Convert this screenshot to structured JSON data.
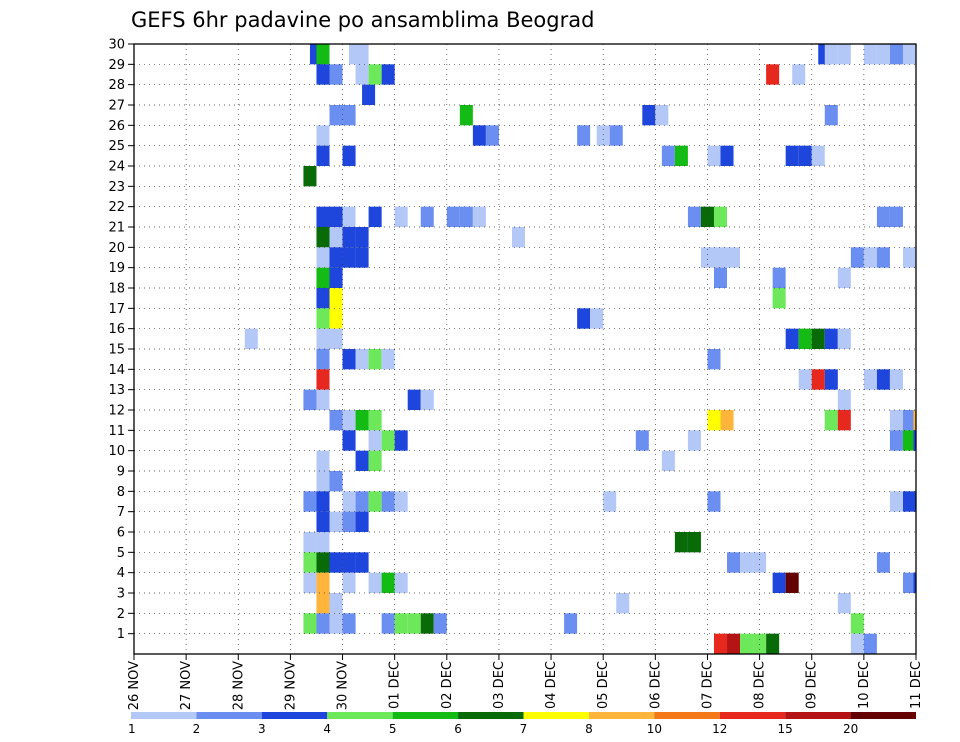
{
  "chart_data": {
    "type": "heatmap",
    "title": "GEFS 6hr padavine po ansamblima Beograd",
    "x_tick_labels": [
      "26 NOV",
      "27 NOV",
      "28 NOV",
      "29 NOV",
      "30 NOV",
      "01 DEC",
      "02 DEC",
      "03 DEC",
      "04 DEC",
      "05 DEC",
      "06 DEC",
      "07 DEC",
      "08 DEC",
      "09 DEC",
      "10 DEC",
      "11 DEC"
    ],
    "x_range": [
      0,
      60
    ],
    "x_step_hours": 6,
    "y_tick_labels": [
      "1",
      "2",
      "3",
      "4",
      "5",
      "6",
      "7",
      "8",
      "9",
      "10",
      "11",
      "12",
      "13",
      "14",
      "15",
      "16",
      "17",
      "18",
      "19",
      "20",
      "21",
      "22",
      "23",
      "24",
      "25",
      "26",
      "27",
      "28",
      "29",
      "30"
    ],
    "y_range": [
      0,
      30
    ],
    "grid": true,
    "colorbar": {
      "position": "bottom",
      "labels": [
        "1",
        "2",
        "3",
        "4",
        "5",
        "6",
        "7",
        "8",
        "10",
        "12",
        "15",
        "20"
      ],
      "colors": [
        "#b4c8f8",
        "#6b8ff0",
        "#1e46dc",
        "#6de85a",
        "#14bb14",
        "#086b08",
        "#ffff00",
        "#ffb43c",
        "#f57818",
        "#e6281e",
        "#b41414",
        "#640000"
      ]
    },
    "cells": [
      {
        "x": 13.5,
        "y": 30,
        "c": 3
      },
      {
        "x": 14,
        "y": 30,
        "c": 5
      },
      {
        "x": 16.5,
        "y": 30,
        "c": 1
      },
      {
        "x": 17,
        "y": 30,
        "c": 1
      },
      {
        "x": 52.5,
        "y": 30,
        "c": 3
      },
      {
        "x": 53,
        "y": 30,
        "c": 1
      },
      {
        "x": 54,
        "y": 30,
        "c": 1
      },
      {
        "x": 56,
        "y": 30,
        "c": 1
      },
      {
        "x": 57,
        "y": 30,
        "c": 1
      },
      {
        "x": 58,
        "y": 30,
        "c": 2
      },
      {
        "x": 59,
        "y": 30,
        "c": 1
      },
      {
        "x": 14,
        "y": 29,
        "c": 3
      },
      {
        "x": 15,
        "y": 29,
        "c": 2
      },
      {
        "x": 17,
        "y": 29,
        "c": 1
      },
      {
        "x": 18,
        "y": 29,
        "c": 4
      },
      {
        "x": 19,
        "y": 29,
        "c": 3
      },
      {
        "x": 48.5,
        "y": 29,
        "c": 10
      },
      {
        "x": 50.5,
        "y": 29,
        "c": 1
      },
      {
        "x": 17.5,
        "y": 28,
        "c": 3
      },
      {
        "x": 15,
        "y": 27,
        "c": 2
      },
      {
        "x": 16,
        "y": 27,
        "c": 2
      },
      {
        "x": 25,
        "y": 27,
        "c": 5
      },
      {
        "x": 39,
        "y": 27,
        "c": 3
      },
      {
        "x": 40,
        "y": 27,
        "c": 1
      },
      {
        "x": 53,
        "y": 27,
        "c": 2
      },
      {
        "x": 14,
        "y": 26,
        "c": 1
      },
      {
        "x": 26,
        "y": 26,
        "c": 3
      },
      {
        "x": 27,
        "y": 26,
        "c": 2
      },
      {
        "x": 34,
        "y": 26,
        "c": 2
      },
      {
        "x": 35.5,
        "y": 26,
        "c": 1
      },
      {
        "x": 36.5,
        "y": 26,
        "c": 2
      },
      {
        "x": 14,
        "y": 25,
        "c": 3
      },
      {
        "x": 16,
        "y": 25,
        "c": 3
      },
      {
        "x": 40.5,
        "y": 25,
        "c": 2
      },
      {
        "x": 41.5,
        "y": 25,
        "c": 5
      },
      {
        "x": 44,
        "y": 25,
        "c": 1
      },
      {
        "x": 45,
        "y": 25,
        "c": 3
      },
      {
        "x": 50,
        "y": 25,
        "c": 3
      },
      {
        "x": 51,
        "y": 25,
        "c": 3
      },
      {
        "x": 52,
        "y": 25,
        "c": 1
      },
      {
        "x": 13,
        "y": 24,
        "c": 6
      },
      {
        "x": 14,
        "y": 22,
        "c": 3
      },
      {
        "x": 15,
        "y": 22,
        "c": 3
      },
      {
        "x": 16,
        "y": 22,
        "c": 1
      },
      {
        "x": 18,
        "y": 22,
        "c": 3
      },
      {
        "x": 20,
        "y": 22,
        "c": 1
      },
      {
        "x": 22,
        "y": 22,
        "c": 2
      },
      {
        "x": 24,
        "y": 22,
        "c": 2
      },
      {
        "x": 25,
        "y": 22,
        "c": 2
      },
      {
        "x": 26,
        "y": 22,
        "c": 1
      },
      {
        "x": 42.5,
        "y": 22,
        "c": 2
      },
      {
        "x": 43.5,
        "y": 22,
        "c": 6
      },
      {
        "x": 44.5,
        "y": 22,
        "c": 4
      },
      {
        "x": 57,
        "y": 22,
        "c": 2
      },
      {
        "x": 58,
        "y": 22,
        "c": 2
      },
      {
        "x": 14,
        "y": 21,
        "c": 6
      },
      {
        "x": 15,
        "y": 21,
        "c": 1
      },
      {
        "x": 16,
        "y": 21,
        "c": 3
      },
      {
        "x": 17,
        "y": 21,
        "c": 3
      },
      {
        "x": 29,
        "y": 21,
        "c": 1
      },
      {
        "x": 14,
        "y": 20,
        "c": 1
      },
      {
        "x": 15,
        "y": 20,
        "c": 3
      },
      {
        "x": 16,
        "y": 20,
        "c": 3
      },
      {
        "x": 17,
        "y": 20,
        "c": 3
      },
      {
        "x": 43.5,
        "y": 20,
        "c": 1
      },
      {
        "x": 44.5,
        "y": 20,
        "c": 1
      },
      {
        "x": 45.5,
        "y": 20,
        "c": 1
      },
      {
        "x": 55,
        "y": 20,
        "c": 2
      },
      {
        "x": 56,
        "y": 20,
        "c": 1
      },
      {
        "x": 57,
        "y": 20,
        "c": 2
      },
      {
        "x": 59,
        "y": 20,
        "c": 1
      },
      {
        "x": 14,
        "y": 19,
        "c": 5
      },
      {
        "x": 15,
        "y": 19,
        "c": 3
      },
      {
        "x": 44.5,
        "y": 19,
        "c": 2
      },
      {
        "x": 49,
        "y": 19,
        "c": 2
      },
      {
        "x": 54,
        "y": 19,
        "c": 1
      },
      {
        "x": 14,
        "y": 18,
        "c": 3
      },
      {
        "x": 15,
        "y": 18,
        "c": 7
      },
      {
        "x": 49,
        "y": 18,
        "c": 4
      },
      {
        "x": 14,
        "y": 17,
        "c": 4
      },
      {
        "x": 15,
        "y": 17,
        "c": 7
      },
      {
        "x": 34,
        "y": 17,
        "c": 3
      },
      {
        "x": 35,
        "y": 17,
        "c": 1
      },
      {
        "x": 8.5,
        "y": 16,
        "c": 1
      },
      {
        "x": 14,
        "y": 16,
        "c": 1
      },
      {
        "x": 15,
        "y": 16,
        "c": 1
      },
      {
        "x": 50,
        "y": 16,
        "c": 3
      },
      {
        "x": 51,
        "y": 16,
        "c": 5
      },
      {
        "x": 52,
        "y": 16,
        "c": 6
      },
      {
        "x": 53,
        "y": 16,
        "c": 3
      },
      {
        "x": 54,
        "y": 16,
        "c": 1
      },
      {
        "x": 14,
        "y": 15,
        "c": 2
      },
      {
        "x": 16,
        "y": 15,
        "c": 3
      },
      {
        "x": 17,
        "y": 15,
        "c": 1
      },
      {
        "x": 18,
        "y": 15,
        "c": 4
      },
      {
        "x": 19,
        "y": 15,
        "c": 1
      },
      {
        "x": 44,
        "y": 15,
        "c": 2
      },
      {
        "x": 14,
        "y": 14,
        "c": 10
      },
      {
        "x": 51,
        "y": 14,
        "c": 1
      },
      {
        "x": 52,
        "y": 14,
        "c": 10
      },
      {
        "x": 53,
        "y": 14,
        "c": 3
      },
      {
        "x": 56,
        "y": 14,
        "c": 1
      },
      {
        "x": 57,
        "y": 14,
        "c": 3
      },
      {
        "x": 58,
        "y": 14,
        "c": 1
      },
      {
        "x": 13,
        "y": 13,
        "c": 2
      },
      {
        "x": 14,
        "y": 13,
        "c": 1
      },
      {
        "x": 21,
        "y": 13,
        "c": 3
      },
      {
        "x": 22,
        "y": 13,
        "c": 1
      },
      {
        "x": 54,
        "y": 13,
        "c": 1
      },
      {
        "x": 15,
        "y": 12,
        "c": 2
      },
      {
        "x": 16,
        "y": 12,
        "c": 1
      },
      {
        "x": 17,
        "y": 12,
        "c": 5
      },
      {
        "x": 18,
        "y": 12,
        "c": 4
      },
      {
        "x": 44,
        "y": 12,
        "c": 7
      },
      {
        "x": 45,
        "y": 12,
        "c": 8
      },
      {
        "x": 53,
        "y": 12,
        "c": 4
      },
      {
        "x": 54,
        "y": 12,
        "c": 10
      },
      {
        "x": 58,
        "y": 12,
        "c": 1
      },
      {
        "x": 59,
        "y": 12,
        "c": 2
      },
      {
        "x": 59.8,
        "y": 12,
        "c": 8
      },
      {
        "x": 16,
        "y": 11,
        "c": 3
      },
      {
        "x": 18,
        "y": 11,
        "c": 1
      },
      {
        "x": 19,
        "y": 11,
        "c": 4
      },
      {
        "x": 20,
        "y": 11,
        "c": 3
      },
      {
        "x": 38.5,
        "y": 11,
        "c": 2
      },
      {
        "x": 42.5,
        "y": 11,
        "c": 1
      },
      {
        "x": 58,
        "y": 11,
        "c": 2
      },
      {
        "x": 59,
        "y": 11,
        "c": 5
      },
      {
        "x": 59.8,
        "y": 11,
        "c": 3
      },
      {
        "x": 14,
        "y": 10,
        "c": 1
      },
      {
        "x": 17,
        "y": 10,
        "c": 3
      },
      {
        "x": 18,
        "y": 10,
        "c": 4
      },
      {
        "x": 40.5,
        "y": 10,
        "c": 1
      },
      {
        "x": 14,
        "y": 9,
        "c": 1
      },
      {
        "x": 15,
        "y": 9,
        "c": 2
      },
      {
        "x": 13,
        "y": 8,
        "c": 2
      },
      {
        "x": 14,
        "y": 8,
        "c": 3
      },
      {
        "x": 16,
        "y": 8,
        "c": 1
      },
      {
        "x": 17,
        "y": 8,
        "c": 2
      },
      {
        "x": 18,
        "y": 8,
        "c": 4
      },
      {
        "x": 19,
        "y": 8,
        "c": 2
      },
      {
        "x": 20,
        "y": 8,
        "c": 1
      },
      {
        "x": 36,
        "y": 8,
        "c": 1
      },
      {
        "x": 44,
        "y": 8,
        "c": 2
      },
      {
        "x": 58,
        "y": 8,
        "c": 1
      },
      {
        "x": 59,
        "y": 8,
        "c": 3
      },
      {
        "x": 14,
        "y": 7,
        "c": 3
      },
      {
        "x": 15,
        "y": 7,
        "c": 1
      },
      {
        "x": 16,
        "y": 7,
        "c": 2
      },
      {
        "x": 17,
        "y": 7,
        "c": 3
      },
      {
        "x": 13,
        "y": 6,
        "c": 1
      },
      {
        "x": 14,
        "y": 6,
        "c": 1
      },
      {
        "x": 41.5,
        "y": 6,
        "c": 6
      },
      {
        "x": 42.5,
        "y": 6,
        "c": 6
      },
      {
        "x": 13,
        "y": 5,
        "c": 4
      },
      {
        "x": 14,
        "y": 5,
        "c": 6
      },
      {
        "x": 15,
        "y": 5,
        "c": 3
      },
      {
        "x": 16,
        "y": 5,
        "c": 3
      },
      {
        "x": 17,
        "y": 5,
        "c": 3
      },
      {
        "x": 45.5,
        "y": 5,
        "c": 2
      },
      {
        "x": 46.5,
        "y": 5,
        "c": 1
      },
      {
        "x": 47.5,
        "y": 5,
        "c": 1
      },
      {
        "x": 57,
        "y": 5,
        "c": 2
      },
      {
        "x": 13,
        "y": 4,
        "c": 1
      },
      {
        "x": 14,
        "y": 4,
        "c": 8
      },
      {
        "x": 16,
        "y": 4,
        "c": 1
      },
      {
        "x": 18,
        "y": 4,
        "c": 1
      },
      {
        "x": 19,
        "y": 4,
        "c": 5
      },
      {
        "x": 20,
        "y": 4,
        "c": 1
      },
      {
        "x": 49,
        "y": 4,
        "c": 3
      },
      {
        "x": 50,
        "y": 4,
        "c": 12
      },
      {
        "x": 59,
        "y": 4,
        "c": 2
      },
      {
        "x": 59.8,
        "y": 4,
        "c": 3
      },
      {
        "x": 14,
        "y": 3,
        "c": 8
      },
      {
        "x": 15,
        "y": 3,
        "c": 1
      },
      {
        "x": 37,
        "y": 3,
        "c": 1
      },
      {
        "x": 54,
        "y": 3,
        "c": 1
      },
      {
        "x": 13,
        "y": 2,
        "c": 4
      },
      {
        "x": 14,
        "y": 2,
        "c": 2
      },
      {
        "x": 15,
        "y": 2,
        "c": 1
      },
      {
        "x": 16,
        "y": 2,
        "c": 2
      },
      {
        "x": 19,
        "y": 2,
        "c": 2
      },
      {
        "x": 20,
        "y": 2,
        "c": 4
      },
      {
        "x": 21,
        "y": 2,
        "c": 4
      },
      {
        "x": 22,
        "y": 2,
        "c": 6
      },
      {
        "x": 23,
        "y": 2,
        "c": 2
      },
      {
        "x": 33,
        "y": 2,
        "c": 2
      },
      {
        "x": 55,
        "y": 2,
        "c": 4
      },
      {
        "x": 44.5,
        "y": 1,
        "c": 10
      },
      {
        "x": 45.5,
        "y": 1,
        "c": 11
      },
      {
        "x": 46.5,
        "y": 1,
        "c": 4
      },
      {
        "x": 47.5,
        "y": 1,
        "c": 4
      },
      {
        "x": 48.5,
        "y": 1,
        "c": 6
      },
      {
        "x": 55,
        "y": 1,
        "c": 1
      },
      {
        "x": 56,
        "y": 1,
        "c": 2
      }
    ]
  }
}
